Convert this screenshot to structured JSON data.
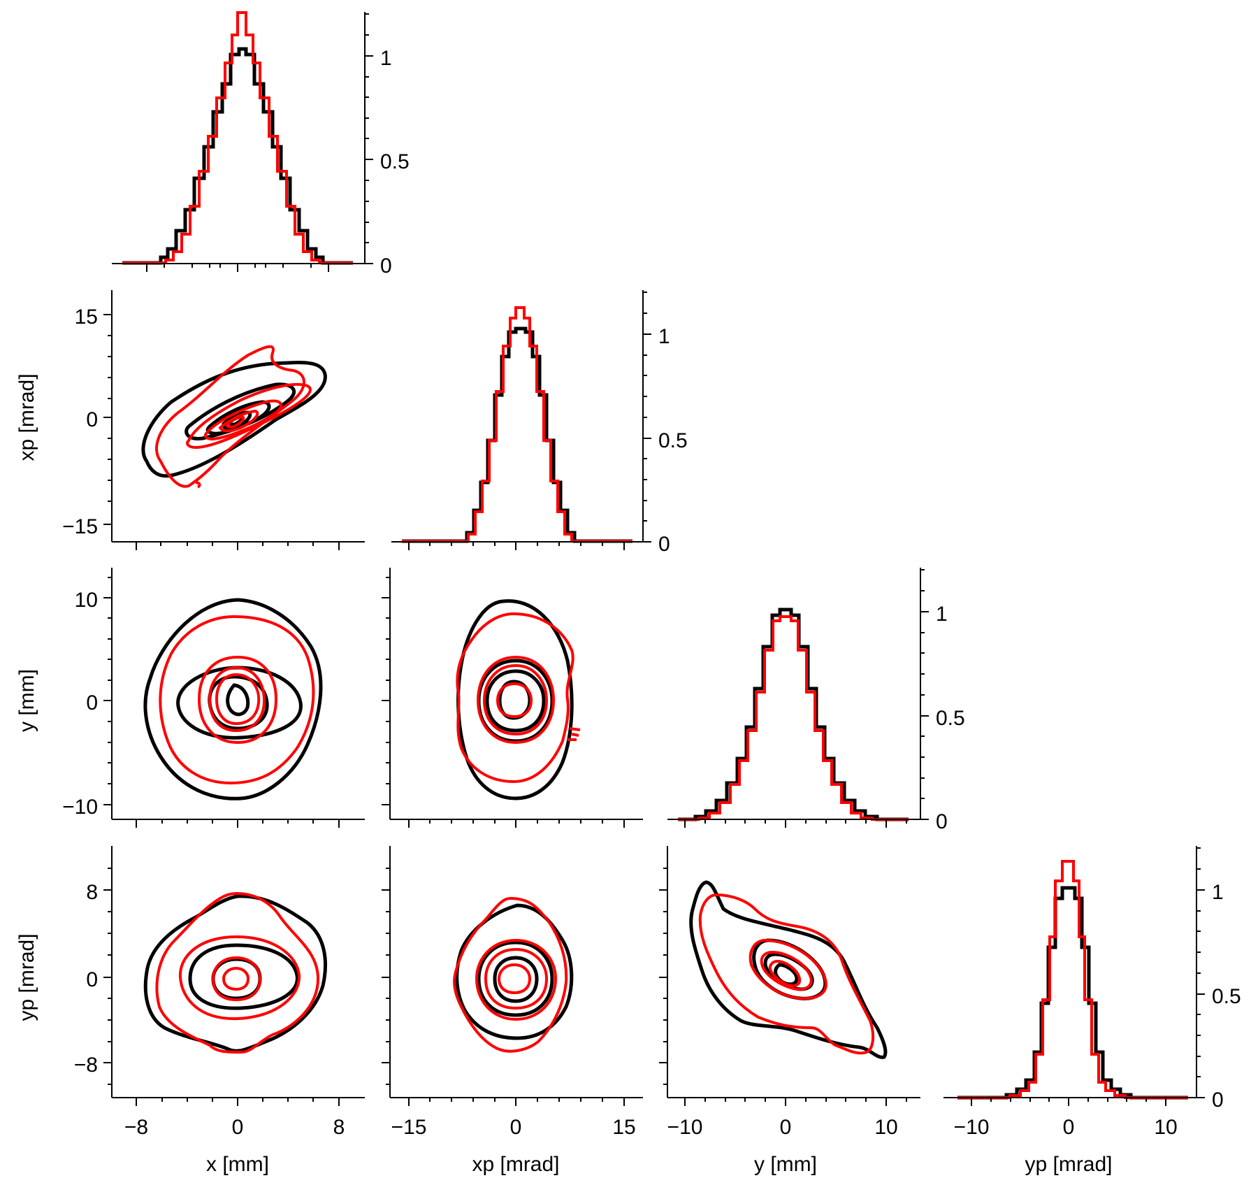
{
  "colors": {
    "series_a": "#000000",
    "series_b": "#ff0000",
    "axis": "#000000"
  },
  "chart_data": [
    {
      "type": "histogram",
      "panel": "x",
      "x": [
        -11,
        -9,
        -7,
        -5,
        -3,
        -1,
        0,
        1,
        3,
        5,
        7,
        9,
        11
      ],
      "series": [
        {
          "color": "#000000",
          "values": [
            0,
            0.01,
            0.06,
            0.23,
            0.58,
            0.92,
            1.0,
            0.92,
            0.58,
            0.23,
            0.06,
            0.01,
            0
          ]
        },
        {
          "color": "#ff0000",
          "values": [
            0,
            0.0,
            0.03,
            0.18,
            0.62,
            1.08,
            1.2,
            1.08,
            0.62,
            0.18,
            0.03,
            0.0,
            0
          ]
        }
      ],
      "ylim": [
        0,
        1.2
      ],
      "yticks": [
        "0",
        "0.5",
        "1"
      ]
    },
    {
      "type": "contour",
      "panel": "x-xp",
      "xlim": [
        -10,
        10
      ],
      "ylim": [
        -17,
        17
      ],
      "yticks": [
        "−15",
        "0",
        "15"
      ],
      "ylabel": "xp [mrad]"
    },
    {
      "type": "histogram",
      "panel": "xp",
      "x": [
        -16,
        -12,
        -9,
        -7,
        -5,
        -3,
        -1,
        0,
        1,
        3,
        5,
        7,
        9,
        12,
        16
      ],
      "series": [
        {
          "color": "#000000",
          "values": [
            0,
            0,
            0.01,
            0.05,
            0.22,
            0.55,
            0.93,
            1.02,
            0.93,
            0.55,
            0.22,
            0.05,
            0.01,
            0,
            0
          ]
        },
        {
          "color": "#ff0000",
          "values": [
            0,
            0,
            0.01,
            0.03,
            0.2,
            0.58,
            1.02,
            1.15,
            1.02,
            0.58,
            0.2,
            0.03,
            0.01,
            0,
            0
          ]
        }
      ],
      "ylim": [
        0,
        1.2
      ],
      "yticks": [
        "0",
        "0.5",
        "1"
      ]
    },
    {
      "type": "contour",
      "panel": "x-y",
      "xlim": [
        -10,
        10
      ],
      "ylim": [
        -12,
        12
      ],
      "yticks": [
        "−10",
        "0",
        "10"
      ],
      "ylabel": "y [mm]"
    },
    {
      "type": "contour",
      "panel": "xp-y",
      "xlim": [
        -17,
        17
      ],
      "ylim": [
        -12,
        12
      ]
    },
    {
      "type": "histogram",
      "panel": "y",
      "x": [
        -11,
        -9,
        -7,
        -5,
        -3,
        -1,
        0,
        1,
        3,
        5,
        7,
        9,
        11
      ],
      "series": [
        {
          "color": "#000000",
          "values": [
            0,
            0.02,
            0.07,
            0.2,
            0.5,
            0.87,
            0.94,
            0.87,
            0.5,
            0.2,
            0.07,
            0.02,
            0
          ]
        },
        {
          "color": "#ff0000",
          "values": [
            0,
            0.01,
            0.06,
            0.2,
            0.5,
            0.84,
            0.9,
            0.84,
            0.5,
            0.2,
            0.06,
            0.01,
            0
          ]
        }
      ],
      "ylim": [
        0,
        1.2
      ],
      "yticks": [
        "0",
        "0.5",
        "1"
      ]
    },
    {
      "type": "contour",
      "panel": "x-yp",
      "xlim": [
        -10,
        10
      ],
      "ylim": [
        -12,
        12
      ],
      "yticks": [
        "−8",
        "0",
        "8"
      ],
      "ylabel": "yp [mrad]",
      "xticks": [
        "−8",
        "0",
        "8"
      ],
      "xlabel": "x [mm]"
    },
    {
      "type": "contour",
      "panel": "xp-yp",
      "xlim": [
        -17,
        17
      ],
      "ylim": [
        -12,
        12
      ],
      "xticks": [
        "−15",
        "0",
        "15"
      ],
      "xlabel": "xp [mrad]"
    },
    {
      "type": "contour",
      "panel": "y-yp",
      "xlim": [
        -12,
        12
      ],
      "ylim": [
        -12,
        12
      ],
      "xticks": [
        "−10",
        "0",
        "10"
      ],
      "xlabel": "y [mm]"
    },
    {
      "type": "histogram",
      "panel": "yp",
      "x": [
        -12,
        -9,
        -7,
        -5,
        -3,
        -1,
        0,
        1,
        3,
        5,
        7,
        9,
        12
      ],
      "series": [
        {
          "color": "#000000",
          "values": [
            0,
            0.01,
            0.03,
            0.1,
            0.45,
            0.92,
            1.0,
            0.92,
            0.45,
            0.1,
            0.03,
            0.01,
            0
          ]
        },
        {
          "color": "#ff0000",
          "values": [
            0,
            0.01,
            0.03,
            0.08,
            0.45,
            1.02,
            1.12,
            1.02,
            0.45,
            0.08,
            0.03,
            0.01,
            0
          ]
        }
      ],
      "ylim": [
        0,
        1.2
      ],
      "yticks": [
        "0",
        "0.5",
        "1"
      ],
      "xticks": [
        "−10",
        "0",
        "10"
      ],
      "xlabel": "yp [mrad]"
    }
  ]
}
